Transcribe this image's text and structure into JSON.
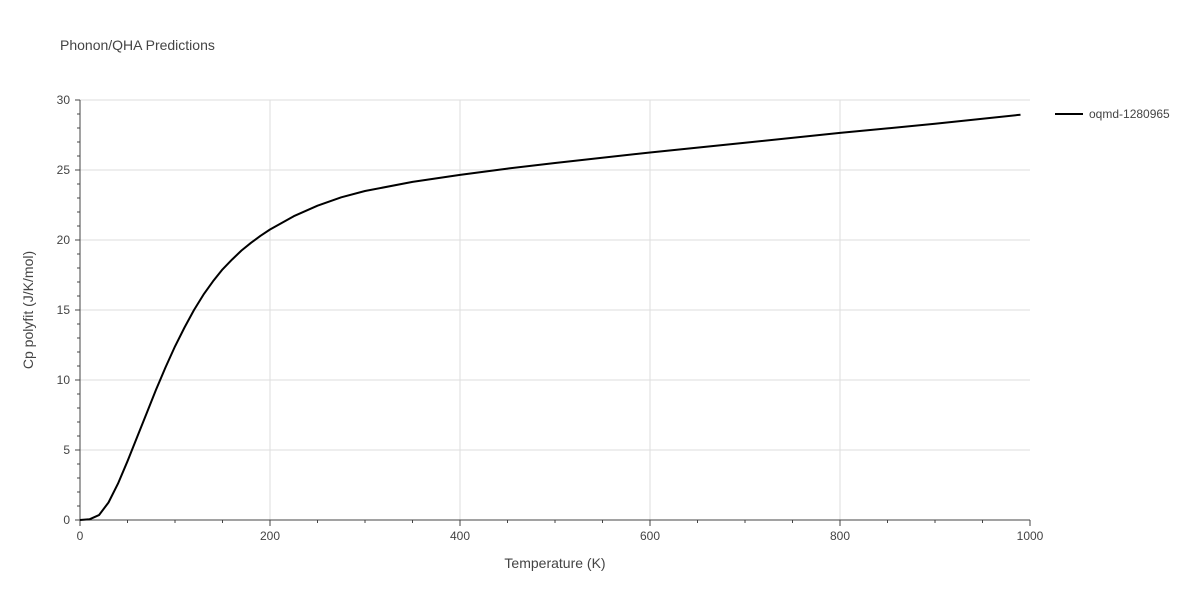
{
  "chart_data": {
    "type": "line",
    "title": "Phonon/QHA Predictions",
    "xlabel": "Temperature (K)",
    "ylabel": "Cp polyfit (J/K/mol)",
    "xlim": [
      0,
      1000
    ],
    "ylim": [
      0,
      30
    ],
    "xticks": [
      0,
      200,
      400,
      600,
      800,
      1000
    ],
    "yticks": [
      0,
      5,
      10,
      15,
      20,
      25,
      30
    ],
    "xtick_labels": [
      "0",
      "200",
      "400",
      "600",
      "800",
      "1000"
    ],
    "ytick_labels": [
      "0",
      "5",
      "10",
      "15",
      "20",
      "25",
      "30"
    ],
    "grid": true,
    "legend_position": "top-right",
    "series": [
      {
        "name": "oqmd-1280965",
        "color": "#000000",
        "x": [
          0,
          10,
          20,
          30,
          40,
          50,
          60,
          70,
          80,
          90,
          100,
          110,
          120,
          130,
          140,
          150,
          160,
          170,
          180,
          190,
          200,
          225,
          250,
          275,
          300,
          350,
          400,
          450,
          500,
          600,
          700,
          800,
          900,
          990
        ],
        "y": [
          0,
          0.05,
          0.35,
          1.25,
          2.6,
          4.2,
          5.9,
          7.6,
          9.3,
          10.9,
          12.4,
          13.75,
          15.0,
          16.1,
          17.05,
          17.9,
          18.6,
          19.25,
          19.8,
          20.3,
          20.75,
          21.7,
          22.45,
          23.05,
          23.5,
          24.15,
          24.65,
          25.1,
          25.5,
          26.25,
          26.95,
          27.65,
          28.3,
          28.95
        ]
      }
    ]
  }
}
